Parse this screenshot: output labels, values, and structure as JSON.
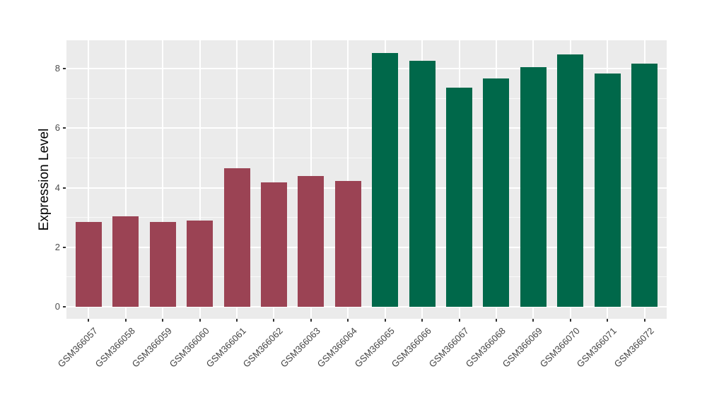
{
  "chart_data": {
    "type": "bar",
    "title": "",
    "ylabel": "Expression Level",
    "xlabel": "",
    "categories": [
      "GSM366057",
      "GSM366058",
      "GSM366059",
      "GSM366060",
      "GSM366061",
      "GSM366062",
      "GSM366063",
      "GSM366064",
      "GSM366065",
      "GSM366066",
      "GSM366067",
      "GSM366068",
      "GSM366069",
      "GSM366070",
      "GSM366071",
      "GSM366072"
    ],
    "values": [
      2.85,
      3.03,
      2.86,
      2.89,
      4.65,
      4.17,
      4.39,
      4.23,
      8.52,
      8.26,
      7.36,
      7.67,
      8.05,
      8.48,
      7.85,
      8.18
    ],
    "bar_colors": [
      "#9B4354",
      "#9B4354",
      "#9B4354",
      "#9B4354",
      "#9B4354",
      "#9B4354",
      "#9B4354",
      "#9B4354",
      "#00684A",
      "#00684A",
      "#00684A",
      "#00684A",
      "#00684A",
      "#00684A",
      "#00684A",
      "#00684A"
    ],
    "yticks": [
      0,
      2,
      4,
      6,
      8
    ],
    "minor_gridlines": [
      1,
      3,
      5,
      7
    ],
    "ylim": [
      -0.43,
      8.95
    ],
    "grid": {
      "major": true,
      "minor": true,
      "vertical_at_categories": true
    },
    "legend_position": "none",
    "colors": {
      "group_left": "#9B4354",
      "group_right": "#00684A",
      "panel_background": "#EBEBEB",
      "gridline": "#FFFFFF",
      "tick_text": "#4D4D4D",
      "axis_title_text": "#000000"
    }
  }
}
